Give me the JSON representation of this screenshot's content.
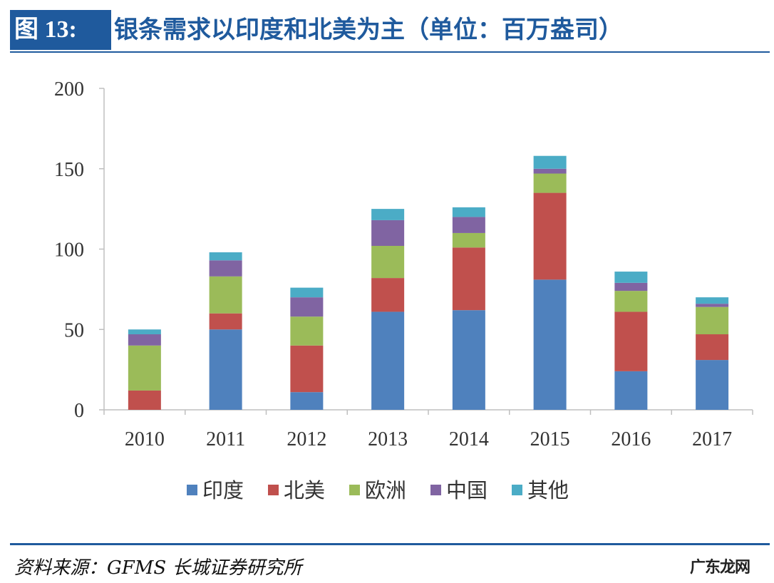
{
  "header": {
    "figure_label": "图 13:",
    "title": "银条需求以印度和北美为主（单位：百万盎司）"
  },
  "footer": {
    "source": "资料来源：GFMS 长城证券研究所",
    "watermark": "广东龙网"
  },
  "colors": {
    "accent": "#1f5a9d",
    "axis": "#bfbfbf"
  },
  "chart_data": {
    "type": "bar",
    "stacked": true,
    "title": "银条需求以印度和北美为主（单位：百万盎司）",
    "xlabel": "",
    "ylabel": "",
    "ylim": [
      0,
      200
    ],
    "yticks": [
      0,
      50,
      100,
      150,
      200
    ],
    "grid": false,
    "legend_position": "bottom",
    "categories": [
      "2010",
      "2011",
      "2012",
      "2013",
      "2014",
      "2015",
      "2016",
      "2017"
    ],
    "series": [
      {
        "name": "印度",
        "color": "#4f81bd",
        "values": [
          0,
          50,
          11,
          61,
          62,
          81,
          24,
          31
        ]
      },
      {
        "name": "北美",
        "color": "#c0504d",
        "values": [
          12,
          10,
          29,
          21,
          39,
          54,
          37,
          16
        ]
      },
      {
        "name": "欧洲",
        "color": "#9bbb59",
        "values": [
          28,
          23,
          18,
          20,
          9,
          12,
          13,
          17
        ]
      },
      {
        "name": "中国",
        "color": "#8064a2",
        "values": [
          7,
          10,
          12,
          16,
          10,
          3,
          5,
          2
        ]
      },
      {
        "name": "其他",
        "color": "#4bacc6",
        "values": [
          3,
          5,
          6,
          7,
          6,
          8,
          7,
          4
        ]
      }
    ]
  }
}
